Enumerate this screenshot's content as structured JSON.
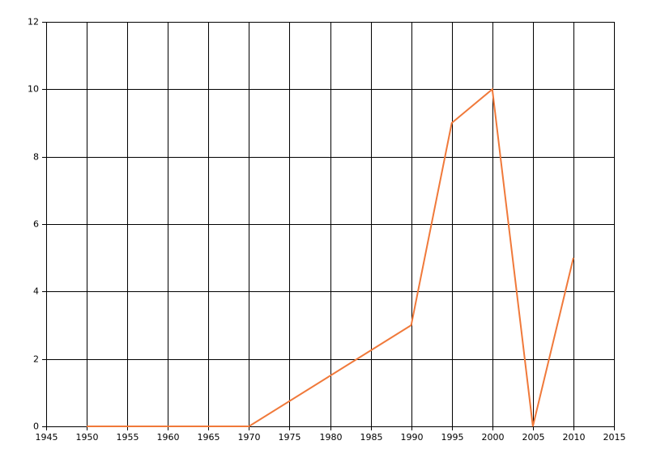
{
  "chart_data": {
    "type": "line",
    "x": [
      1950,
      1970,
      1990,
      1995,
      2000,
      2005,
      2010
    ],
    "series": [
      {
        "color": "#f0793a",
        "values": [
          0,
          0,
          3,
          9,
          10,
          0,
          5
        ]
      }
    ],
    "xlim": [
      1945,
      2015
    ],
    "xticks": [
      1945,
      1950,
      1955,
      1960,
      1965,
      1970,
      1975,
      1980,
      1985,
      1990,
      1995,
      2000,
      2005,
      2010,
      2015
    ],
    "ylim": [
      0,
      12
    ],
    "yticks": [
      0,
      2,
      4,
      6,
      8,
      10,
      12
    ],
    "grid": true
  }
}
